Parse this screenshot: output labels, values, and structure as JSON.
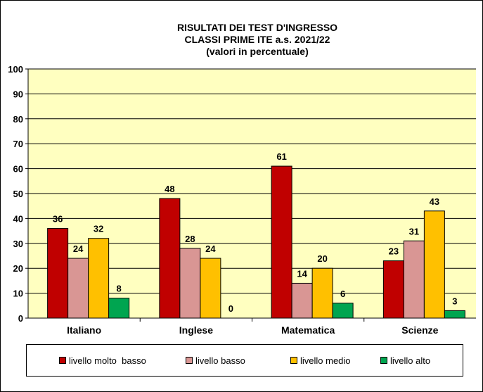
{
  "chart_data": {
    "type": "bar",
    "title": [
      "RISULTATI DEI TEST D'INGRESSO",
      "CLASSI PRIME  ITE a.s. 2021/22",
      "(valori in percentuale)"
    ],
    "categories": [
      "Italiano",
      "Inglese",
      "Matematica",
      "Scienze"
    ],
    "series": [
      {
        "name": "livello molto  basso",
        "color": "#C00000",
        "values": [
          36,
          48,
          61,
          23
        ],
        "labels": [
          "36",
          "48",
          "61",
          "23"
        ]
      },
      {
        "name": "livello basso",
        "color": "#D99694",
        "values": [
          24,
          28,
          14,
          31
        ],
        "labels": [
          "24",
          "28",
          "14",
          "31"
        ]
      },
      {
        "name": "livello medio",
        "color": "#FFC000",
        "values": [
          32,
          24,
          20,
          43
        ],
        "labels": [
          "32",
          "24",
          "20",
          "43"
        ]
      },
      {
        "name": "livello alto",
        "color": "#00A550",
        "values": [
          8,
          0,
          6,
          3
        ],
        "labels": [
          "8",
          "0",
          "6",
          "3"
        ]
      }
    ],
    "ylim": [
      0,
      100
    ],
    "yticks": [
      0,
      10,
      20,
      30,
      40,
      50,
      60,
      70,
      80,
      90,
      100
    ],
    "ytick_labels": [
      "0",
      "10",
      "20",
      "30",
      "40",
      "50",
      "60",
      "70",
      "80",
      "90",
      "100"
    ],
    "xlabel": "",
    "ylabel": "",
    "grid": true,
    "plot_background": "#FFFFC0",
    "legend_position": "bottom"
  }
}
